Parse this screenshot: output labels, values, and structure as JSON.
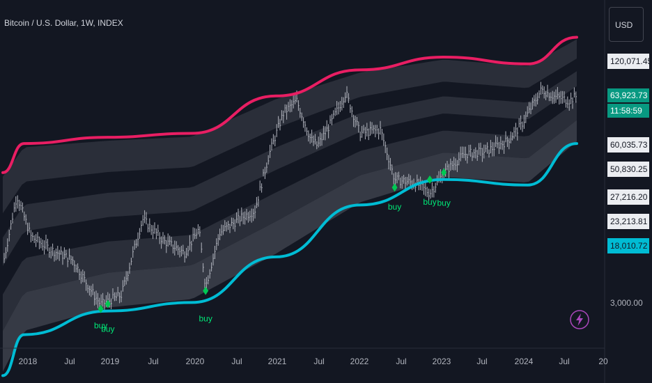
{
  "header": {
    "title": "Bitcoin / U.S. Dollar, 1W, INDEX",
    "currency_button": "USD"
  },
  "price_scale": {
    "labels": [
      {
        "text": "120,071.45",
        "style": "light"
      },
      {
        "text": "63,923.73",
        "style": "green"
      },
      {
        "text": "11:58:59",
        "style": "green"
      },
      {
        "text": "60,035.73",
        "style": "light"
      },
      {
        "text": "50,830.25",
        "style": "light"
      },
      {
        "text": "27,216.20",
        "style": "light"
      },
      {
        "text": "23,213.81",
        "style": "light"
      },
      {
        "text": "18,010.72",
        "style": "cyan"
      },
      {
        "text": "3,000.00",
        "style": "plain"
      }
    ]
  },
  "time_axis": {
    "labels": [
      "2018",
      "Jul",
      "2019",
      "Jul",
      "2020",
      "Jul",
      "2021",
      "Jul",
      "2022",
      "Jul",
      "2023",
      "Jul",
      "2024",
      "Jul",
      "20"
    ]
  },
  "colors": {
    "background": "#131722",
    "upper_band": "#e91e63",
    "lower_band": "#00bcd4",
    "band_fill": "#2a2e39",
    "band_fill_light": "#363a45",
    "price_bar": "#b2b5be",
    "buy_signal": "#00e676"
  },
  "icons": {
    "alert": "lightning-bolt-icon"
  },
  "chart_data": {
    "type": "line",
    "title": "Bitcoin / U.S. Dollar, 1W, INDEX",
    "y_scale": "log",
    "ylim": [
      2000,
      150000
    ],
    "x_range": [
      "2017-10",
      "2024-11"
    ],
    "series": [
      {
        "role": "price",
        "x": [
          "2017-10",
          "2017-12",
          "2018-02",
          "2018-05",
          "2018-08",
          "2018-11",
          "2018-12",
          "2019-03",
          "2019-06",
          "2019-09",
          "2019-12",
          "2020-02",
          "2020-03",
          "2020-05",
          "2020-08",
          "2020-10",
          "2020-12",
          "2021-02",
          "2021-04",
          "2021-06",
          "2021-07",
          "2021-09",
          "2021-11",
          "2022-01",
          "2022-04",
          "2022-06",
          "2022-09",
          "2022-11",
          "2023-01",
          "2023-04",
          "2023-07",
          "2023-10",
          "2023-12",
          "2024-03",
          "2024-05",
          "2024-07",
          "2024-08"
        ],
        "values": [
          6000,
          16000,
          9000,
          7500,
          6500,
          4000,
          3500,
          4000,
          11500,
          8500,
          7200,
          10000,
          4500,
          9500,
          11700,
          13000,
          28000,
          50000,
          60000,
          35000,
          32000,
          45000,
          67000,
          38000,
          40000,
          20000,
          19000,
          16500,
          22000,
          28500,
          29500,
          34000,
          42000,
          70000,
          63000,
          60000,
          64000
        ]
      },
      {
        "role": "upper_band",
        "x": [
          "2017-10",
          "2018-01",
          "2019-01",
          "2020-01",
          "2021-01",
          "2022-01",
          "2023-01",
          "2024-01",
          "2024-08"
        ],
        "values": [
          22000,
          33000,
          36000,
          38000,
          64000,
          92000,
          110000,
          100000,
          145000
        ]
      },
      {
        "role": "lower_band",
        "x": [
          "2017-10",
          "2018-01",
          "2019-01",
          "2020-01",
          "2021-01",
          "2022-01",
          "2023-01",
          "2024-01",
          "2024-08"
        ],
        "values": [
          1300,
          2300,
          3200,
          3600,
          6800,
          14000,
          20000,
          18500,
          33000
        ]
      }
    ],
    "annotations": [
      {
        "label": "buy",
        "x": "2018-12"
      },
      {
        "label": "buy",
        "x": "2019-01"
      },
      {
        "label": "buy",
        "x": "2020-03"
      },
      {
        "label": "buy",
        "x": "2022-06"
      },
      {
        "label": "buy",
        "x": "2022-11"
      },
      {
        "label": "buy",
        "x": "2023-01"
      }
    ]
  }
}
